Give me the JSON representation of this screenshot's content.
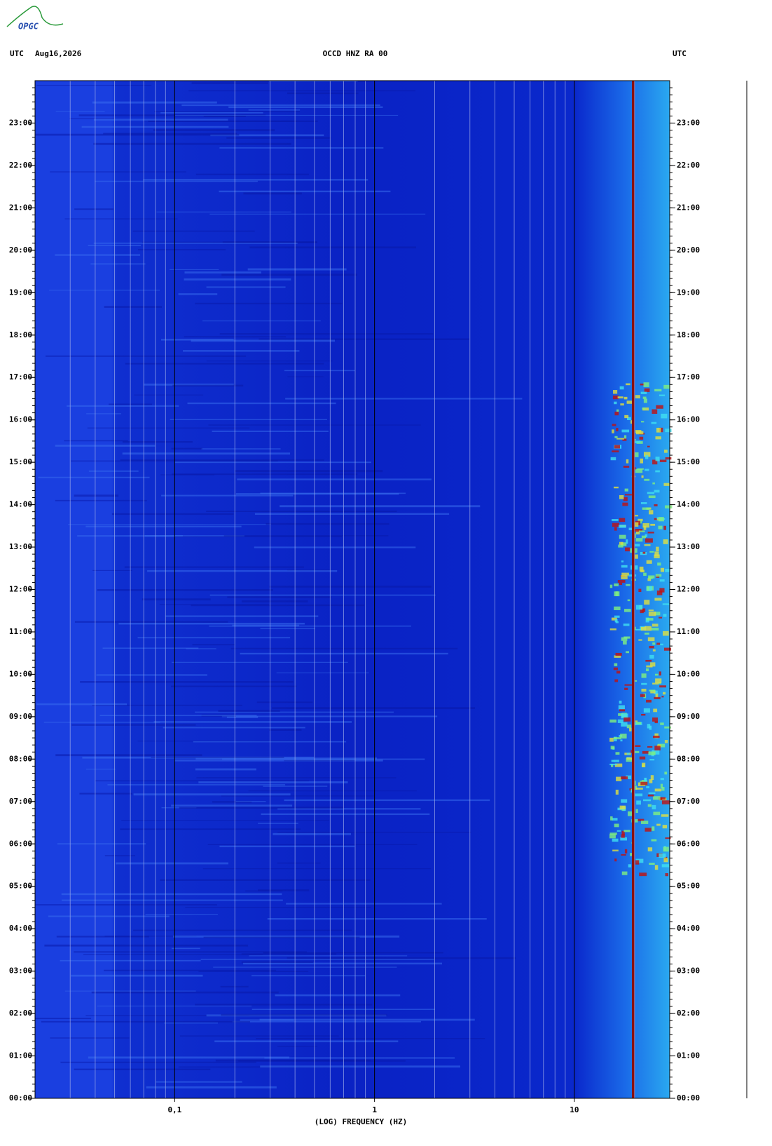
{
  "logo": "OPGC",
  "chart_data": {
    "type": "spectrogram",
    "title": "OCCD HNZ RA 00",
    "date": "Aug16,2026",
    "left_label": "UTC",
    "right_label": "UTC",
    "xlabel": "(LOG) FREQUENCY (HZ)",
    "xscale": "log",
    "xlim": [
      0.02,
      30
    ],
    "xticks": [
      {
        "value": 0.1,
        "label": "0,1"
      },
      1,
      10
    ],
    "ylim": [
      0,
      24
    ],
    "yticks": [
      {
        "value": 0,
        "label": "00:00"
      },
      {
        "value": 1,
        "label": "01:00"
      },
      {
        "value": 2,
        "label": "02:00"
      },
      {
        "value": 3,
        "label": "03:00"
      },
      {
        "value": 4,
        "label": "04:00"
      },
      {
        "value": 5,
        "label": "05:00"
      },
      {
        "value": 6,
        "label": "06:00"
      },
      {
        "value": 7,
        "label": "07:00"
      },
      {
        "value": 8,
        "label": "08:00"
      },
      {
        "value": 9,
        "label": "09:00"
      },
      {
        "value": 10,
        "label": "10:00"
      },
      {
        "value": 11,
        "label": "11:00"
      },
      {
        "value": 12,
        "label": "12:00"
      },
      {
        "value": 13,
        "label": "13:00"
      },
      {
        "value": 14,
        "label": "14:00"
      },
      {
        "value": 15,
        "label": "15:00"
      },
      {
        "value": 16,
        "label": "16:00"
      },
      {
        "value": 17,
        "label": "17:00"
      },
      {
        "value": 18,
        "label": "18:00"
      },
      {
        "value": 19,
        "label": "19:00"
      },
      {
        "value": 20,
        "label": "20:00"
      },
      {
        "value": 21,
        "label": "21:00"
      },
      {
        "value": 22,
        "label": "22:00"
      },
      {
        "value": 23,
        "label": "23:00"
      }
    ],
    "grid": true
  }
}
